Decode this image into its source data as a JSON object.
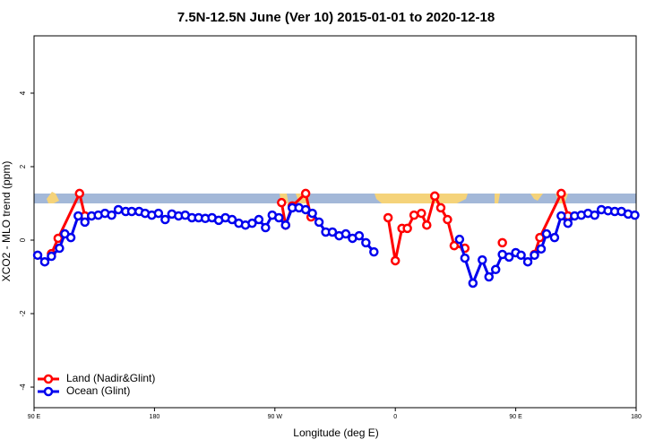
{
  "chart_data": {
    "type": "line",
    "title": "7.5N-12.5N June (Ver 10)   2015-01-01 to 2020-12-18",
    "x_label": "Longitude (deg E)",
    "y_label": "XCO2 - MLO trend (ppm)",
    "xlim": [
      90,
      540
    ],
    "xticks": [
      {
        "value": 90,
        "label": "90 E"
      },
      180,
      {
        "value": 270,
        "label": "90 W"
      },
      {
        "value": 360,
        "label": "0"
      },
      {
        "value": 450,
        "label": "90 E"
      },
      {
        "value": 540,
        "label": "180"
      }
    ],
    "ylim": [
      -4.56,
      5.56
    ],
    "yticks": [
      -4,
      -2,
      0,
      2,
      4
    ],
    "legend": "bottom-left",
    "series": [
      {
        "name": "Land (Nadir&Glint)",
        "color": "#ff0000",
        "x": [
          103,
          108,
          124,
          128,
          200,
          275,
          278,
          283,
          293,
          297,
          320,
          354.6,
          360,
          365,
          369,
          374,
          379.5,
          383.5,
          389.5,
          394,
          399,
          404,
          412,
          426,
          440,
          452,
          464,
          468,
          484,
          489
        ],
        "values": [
          -0.37,
          0.05,
          1.27,
          0.66,
          null,
          1.02,
          0.41,
          0.93,
          1.27,
          0.63,
          null,
          0.61,
          -0.56,
          0.32,
          0.32,
          0.68,
          0.73,
          0.41,
          1.2,
          0.88,
          0.56,
          -0.15,
          -0.22,
          null,
          -0.07,
          null,
          -0.39,
          0.07,
          1.27,
          0.66
        ]
      },
      {
        "name": "Ocean (Glint)",
        "color": "#0000ee",
        "x": [
          92.7,
          98,
          103,
          109,
          113,
          117.5,
          123,
          128,
          133,
          138,
          143,
          148,
          153,
          158.5,
          163,
          168.5,
          173,
          178,
          183,
          188,
          193,
          198,
          203,
          208,
          213,
          218,
          223,
          228,
          233,
          238,
          243,
          248,
          253,
          258,
          263,
          268,
          273,
          278,
          283,
          288,
          293,
          298,
          303,
          308,
          313,
          318,
          323,
          328,
          333,
          338,
          344,
          376,
          408,
          412,
          418,
          425,
          430,
          435,
          440,
          445,
          450,
          454,
          459,
          464,
          469,
          473,
          479,
          484,
          489,
          494,
          499,
          504,
          509,
          514,
          519,
          524,
          529,
          534,
          539
        ],
        "values": [
          -0.41,
          -0.59,
          -0.44,
          -0.22,
          0.17,
          0.07,
          0.66,
          0.49,
          0.66,
          0.68,
          0.73,
          0.68,
          0.83,
          0.78,
          0.78,
          0.78,
          0.73,
          0.68,
          0.73,
          0.56,
          0.71,
          0.66,
          0.68,
          0.61,
          0.61,
          0.59,
          0.61,
          0.54,
          0.61,
          0.56,
          0.46,
          0.41,
          0.46,
          0.56,
          0.34,
          0.68,
          0.61,
          0.41,
          0.88,
          0.88,
          0.83,
          0.73,
          0.49,
          0.22,
          0.22,
          0.12,
          0.17,
          0.05,
          0.12,
          -0.07,
          -0.32,
          null,
          0.02,
          -0.49,
          -1.17,
          -0.54,
          -1.0,
          -0.8,
          -0.39,
          -0.46,
          -0.34,
          -0.41,
          -0.59,
          -0.41,
          -0.24,
          0.17,
          0.07,
          0.66,
          0.46,
          0.66,
          0.68,
          0.73,
          0.68,
          0.83,
          0.8,
          0.78,
          0.78,
          0.71,
          0.68
        ]
      }
    ]
  }
}
